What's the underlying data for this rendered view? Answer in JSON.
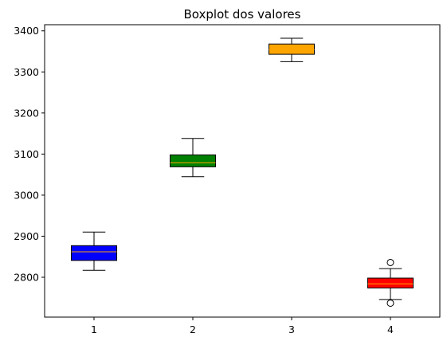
{
  "chart_data": {
    "type": "box",
    "title": "Boxplot dos valores",
    "xlabel": "",
    "ylabel": "",
    "categories": [
      "1",
      "2",
      "3",
      "4"
    ],
    "ylim": [
      2703,
      3415
    ],
    "y_ticks": [
      2800,
      2900,
      3000,
      3100,
      3200,
      3300,
      3400
    ],
    "grid": false,
    "boxes": [
      {
        "label": "1",
        "color": "#0000ff",
        "whisker_low": 2817,
        "q1": 2841,
        "median": 2862,
        "q3": 2877,
        "whisker_high": 2910,
        "outliers": []
      },
      {
        "label": "2",
        "color": "#008000",
        "whisker_low": 3045,
        "q1": 3069,
        "median": 3079,
        "q3": 3098,
        "whisker_high": 3138,
        "outliers": []
      },
      {
        "label": "3",
        "color": "#ffa500",
        "whisker_low": 3325,
        "q1": 3343,
        "median": 3354,
        "q3": 3368,
        "whisker_high": 3382,
        "outliers": []
      },
      {
        "label": "4",
        "color": "#ff0000",
        "whisker_low": 2746,
        "q1": 2774,
        "median": 2784,
        "q3": 2798,
        "whisker_high": 2821,
        "outliers": [
          2737,
          2836
        ]
      }
    ],
    "median_color": "#ffa500"
  }
}
